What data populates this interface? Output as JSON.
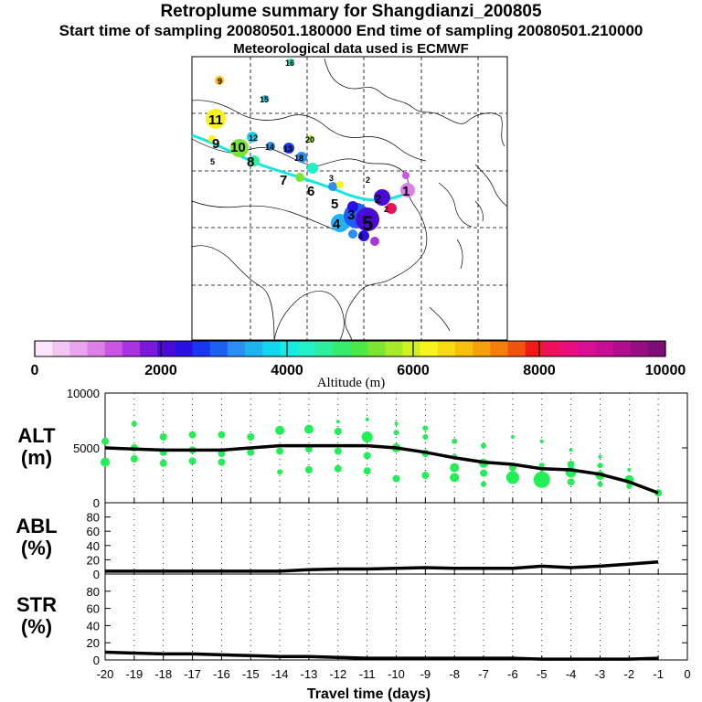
{
  "header": {
    "title": "Retroplume summary for Shangdianzi_200805",
    "subtitle": "Start time of sampling 20080501.180000     End time of sampling 20080501.210000",
    "met_line": "Meteorological data used is ECMWF"
  },
  "map": {
    "description_labels": [
      "1",
      "2",
      "3",
      "4",
      "5",
      "6",
      "7",
      "8",
      "9",
      "10",
      "11",
      "12",
      "13",
      "14",
      "15",
      "16",
      "18",
      "20"
    ],
    "colorbar": {
      "ticks": [
        "0",
        "2000",
        "4000",
        "6000",
        "8000",
        "10000"
      ],
      "label": "Altitude (m)",
      "colors": [
        "#fce6fc",
        "#f2c6f2",
        "#e8a4ec",
        "#de7fe8",
        "#cc55e6",
        "#aa33e0",
        "#7a18dc",
        "#4b0ad6",
        "#2a10e6",
        "#1b35f0",
        "#1f60f4",
        "#2a8ef2",
        "#1fb4f0",
        "#12d6ee",
        "#12ece6",
        "#22f0c8",
        "#2df09e",
        "#35ec70",
        "#4ce848",
        "#7ae632",
        "#a6ea2a",
        "#d2f020",
        "#f6f41c",
        "#f7dc12",
        "#f8c00e",
        "#f6a00c",
        "#f47e0a",
        "#f25410",
        "#f21a18",
        "#f0105a",
        "#e8107c",
        "#da0e92",
        "#c80e94",
        "#b00e8a",
        "#960e80",
        "#7c0e74"
      ]
    }
  },
  "chart_data": [
    {
      "type": "line",
      "panel": "ALT",
      "ylabel": "ALT\n(m)",
      "ylabel_lines": [
        "ALT",
        "(m)"
      ],
      "ylim": [
        0,
        10000
      ],
      "yticks": [
        "0",
        "5000",
        "10000"
      ],
      "x": [
        -20,
        -19,
        -18,
        -17,
        -16,
        -15,
        -14,
        -13,
        -12,
        -11,
        -10,
        -9,
        -8,
        -7,
        -6,
        -5,
        -4,
        -3,
        -2,
        -1
      ],
      "line_values": [
        5000,
        4900,
        4800,
        4800,
        4800,
        5000,
        5200,
        5200,
        5200,
        5200,
        5000,
        4600,
        4100,
        3700,
        3500,
        3100,
        3000,
        2600,
        1900,
        900
      ],
      "dot_color": "#22ee55",
      "dots": [
        {
          "x": -20,
          "y": 5600,
          "r": 4
        },
        {
          "x": -20,
          "y": 3700,
          "r": 5
        },
        {
          "x": -19,
          "y": 7200,
          "r": 3
        },
        {
          "x": -19,
          "y": 5000,
          "r": 4
        },
        {
          "x": -19,
          "y": 4000,
          "r": 4
        },
        {
          "x": -18,
          "y": 6000,
          "r": 4
        },
        {
          "x": -18,
          "y": 4600,
          "r": 4
        },
        {
          "x": -18,
          "y": 3600,
          "r": 4
        },
        {
          "x": -17,
          "y": 6200,
          "r": 4
        },
        {
          "x": -17,
          "y": 4800,
          "r": 4
        },
        {
          "x": -17,
          "y": 3800,
          "r": 4
        },
        {
          "x": -16,
          "y": 6200,
          "r": 4
        },
        {
          "x": -16,
          "y": 4500,
          "r": 4
        },
        {
          "x": -16,
          "y": 3700,
          "r": 4
        },
        {
          "x": -15,
          "y": 6000,
          "r": 4
        },
        {
          "x": -15,
          "y": 4600,
          "r": 4
        },
        {
          "x": -14,
          "y": 6600,
          "r": 5
        },
        {
          "x": -14,
          "y": 4700,
          "r": 4
        },
        {
          "x": -14,
          "y": 2800,
          "r": 3
        },
        {
          "x": -13,
          "y": 6700,
          "r": 5
        },
        {
          "x": -13,
          "y": 4900,
          "r": 4
        },
        {
          "x": -13,
          "y": 3000,
          "r": 4
        },
        {
          "x": -12,
          "y": 7400,
          "r": 2
        },
        {
          "x": -12,
          "y": 6500,
          "r": 4
        },
        {
          "x": -12,
          "y": 4700,
          "r": 4
        },
        {
          "x": -12,
          "y": 3100,
          "r": 4
        },
        {
          "x": -11,
          "y": 7600,
          "r": 2
        },
        {
          "x": -11,
          "y": 6000,
          "r": 6
        },
        {
          "x": -11,
          "y": 4300,
          "r": 4
        },
        {
          "x": -11,
          "y": 2900,
          "r": 4
        },
        {
          "x": -10,
          "y": 7200,
          "r": 2
        },
        {
          "x": -10,
          "y": 6400,
          "r": 3
        },
        {
          "x": -10,
          "y": 5000,
          "r": 5
        },
        {
          "x": -10,
          "y": 2200,
          "r": 4
        },
        {
          "x": -9,
          "y": 6800,
          "r": 3
        },
        {
          "x": -9,
          "y": 6000,
          "r": 3
        },
        {
          "x": -9,
          "y": 4500,
          "r": 4
        },
        {
          "x": -9,
          "y": 2500,
          "r": 4
        },
        {
          "x": -8,
          "y": 5600,
          "r": 3
        },
        {
          "x": -8,
          "y": 4200,
          "r": 3
        },
        {
          "x": -8,
          "y": 3200,
          "r": 5
        },
        {
          "x": -8,
          "y": 2300,
          "r": 5
        },
        {
          "x": -7,
          "y": 5200,
          "r": 3
        },
        {
          "x": -7,
          "y": 3600,
          "r": 5
        },
        {
          "x": -7,
          "y": 2700,
          "r": 4
        },
        {
          "x": -7,
          "y": 1700,
          "r": 3
        },
        {
          "x": -6,
          "y": 6000,
          "r": 2
        },
        {
          "x": -6,
          "y": 3200,
          "r": 4
        },
        {
          "x": -6,
          "y": 2300,
          "r": 7
        },
        {
          "x": -5,
          "y": 5600,
          "r": 2
        },
        {
          "x": -5,
          "y": 3400,
          "r": 3
        },
        {
          "x": -5,
          "y": 2100,
          "r": 9
        },
        {
          "x": -5,
          "y": 3000,
          "r": 2
        },
        {
          "x": -4,
          "y": 4800,
          "r": 2
        },
        {
          "x": -4,
          "y": 3500,
          "r": 4
        },
        {
          "x": -4,
          "y": 2800,
          "r": 6
        },
        {
          "x": -4,
          "y": 1900,
          "r": 4
        },
        {
          "x": -3,
          "y": 4200,
          "r": 2
        },
        {
          "x": -3,
          "y": 3400,
          "r": 3
        },
        {
          "x": -3,
          "y": 2500,
          "r": 5
        },
        {
          "x": -3,
          "y": 1700,
          "r": 3
        },
        {
          "x": -2,
          "y": 3000,
          "r": 2
        },
        {
          "x": -2,
          "y": 2100,
          "r": 5
        },
        {
          "x": -2,
          "y": 1500,
          "r": 3
        },
        {
          "x": -1,
          "y": 900,
          "r": 4
        }
      ]
    },
    {
      "type": "line",
      "panel": "ABL",
      "ylabel": "ABL\n(%)",
      "ylabel_lines": [
        "ABL",
        "(%)"
      ],
      "ylim": [
        0,
        100
      ],
      "yticks": [
        "0",
        "20",
        "40",
        "60",
        "80"
      ],
      "x": [
        -20,
        -19,
        -18,
        -17,
        -16,
        -15,
        -14,
        -13,
        -12,
        -11,
        -10,
        -9,
        -8,
        -7,
        -6,
        -5,
        -4,
        -3,
        -2,
        -1
      ],
      "line_values": [
        4,
        4,
        4,
        4,
        4,
        4,
        4,
        6,
        7,
        7,
        8,
        9,
        8,
        8,
        8,
        11,
        9,
        11,
        14,
        17
      ]
    },
    {
      "type": "line",
      "panel": "STR",
      "ylabel": "STR\n(%)",
      "ylabel_lines": [
        "STR",
        "(%)"
      ],
      "ylim": [
        0,
        100
      ],
      "yticks": [
        "0",
        "20",
        "40",
        "60",
        "80"
      ],
      "x": [
        -20,
        -19,
        -18,
        -17,
        -16,
        -15,
        -14,
        -13,
        -12,
        -11,
        -10,
        -9,
        -8,
        -7,
        -6,
        -5,
        -4,
        -3,
        -2,
        -1
      ],
      "line_values": [
        9,
        8,
        7,
        7,
        6,
        5,
        4,
        4,
        3,
        2,
        2,
        2,
        2,
        2,
        2,
        1,
        1,
        1,
        1,
        2
      ],
      "xlabel": "Travel time (days)",
      "xticks": [
        "-20",
        "-19",
        "-18",
        "-17",
        "-16",
        "-15",
        "-14",
        "-13",
        "-12",
        "-11",
        "-10",
        "-9",
        "-8",
        "-7",
        "-6",
        "-5",
        "-4",
        "-3",
        "-2",
        "-1",
        "0"
      ]
    }
  ]
}
